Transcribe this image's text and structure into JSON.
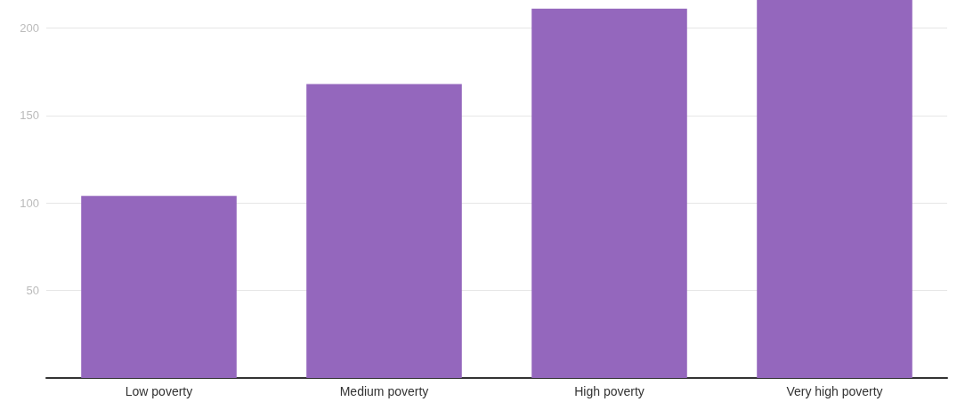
{
  "chart_data": {
    "type": "bar",
    "categories": [
      "Low poverty",
      "Medium poverty",
      "High poverty",
      "Very high poverty"
    ],
    "values": [
      104,
      168,
      211,
      216
    ],
    "color": "#9467bd",
    "ylim": [
      0,
      216
    ],
    "yticks": [
      50,
      100,
      150,
      200
    ],
    "grid": "y"
  }
}
